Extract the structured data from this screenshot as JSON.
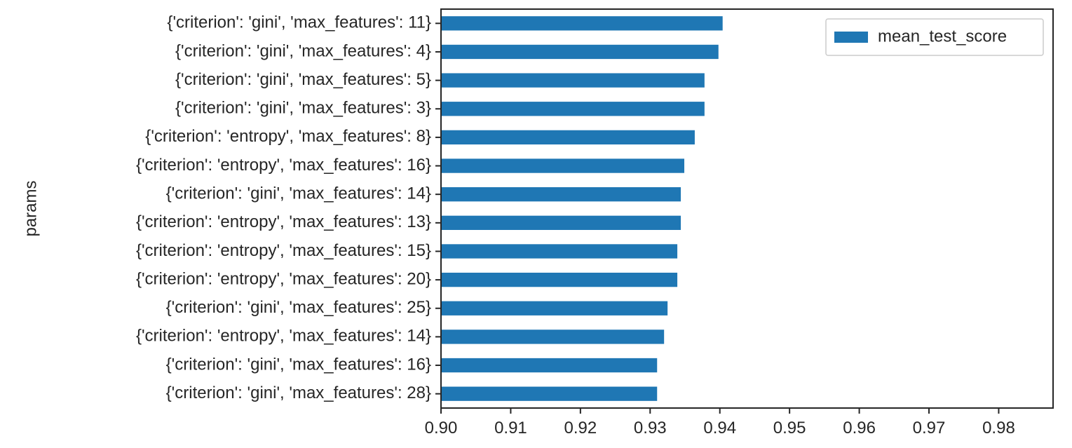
{
  "chart_data": {
    "type": "bar",
    "orientation": "horizontal",
    "title": "",
    "xlabel": "",
    "ylabel": "params",
    "categories": [
      "{'criterion': 'gini', 'max_features': 11}",
      "{'criterion': 'gini', 'max_features': 4}",
      "{'criterion': 'gini', 'max_features': 5}",
      "{'criterion': 'gini', 'max_features': 3}",
      "{'criterion': 'entropy', 'max_features': 8}",
      "{'criterion': 'entropy', 'max_features': 16}",
      "{'criterion': 'gini', 'max_features': 14}",
      "{'criterion': 'entropy', 'max_features': 13}",
      "{'criterion': 'entropy', 'max_features': 15}",
      "{'criterion': 'entropy', 'max_features': 20}",
      "{'criterion': 'gini', 'max_features': 25}",
      "{'criterion': 'entropy', 'max_features': 14}",
      "{'criterion': 'gini', 'max_features': 16}",
      "{'criterion': 'gini', 'max_features': 28}"
    ],
    "series": [
      {
        "name": "mean_test_score",
        "color": "#1f77b4",
        "values": [
          0.9404,
          0.9398,
          0.9378,
          0.9378,
          0.9364,
          0.9349,
          0.9344,
          0.9344,
          0.9339,
          0.9339,
          0.9325,
          0.932,
          0.931,
          0.931
        ]
      }
    ],
    "xlim": [
      0.9,
      0.9878
    ],
    "xticks": [
      0.9,
      0.91,
      0.92,
      0.93,
      0.94,
      0.95,
      0.96,
      0.97,
      0.98
    ],
    "xtick_labels": [
      "0.90",
      "0.91",
      "0.92",
      "0.93",
      "0.94",
      "0.95",
      "0.96",
      "0.97",
      "0.98"
    ],
    "grid": false,
    "legend_position": "top-right"
  }
}
